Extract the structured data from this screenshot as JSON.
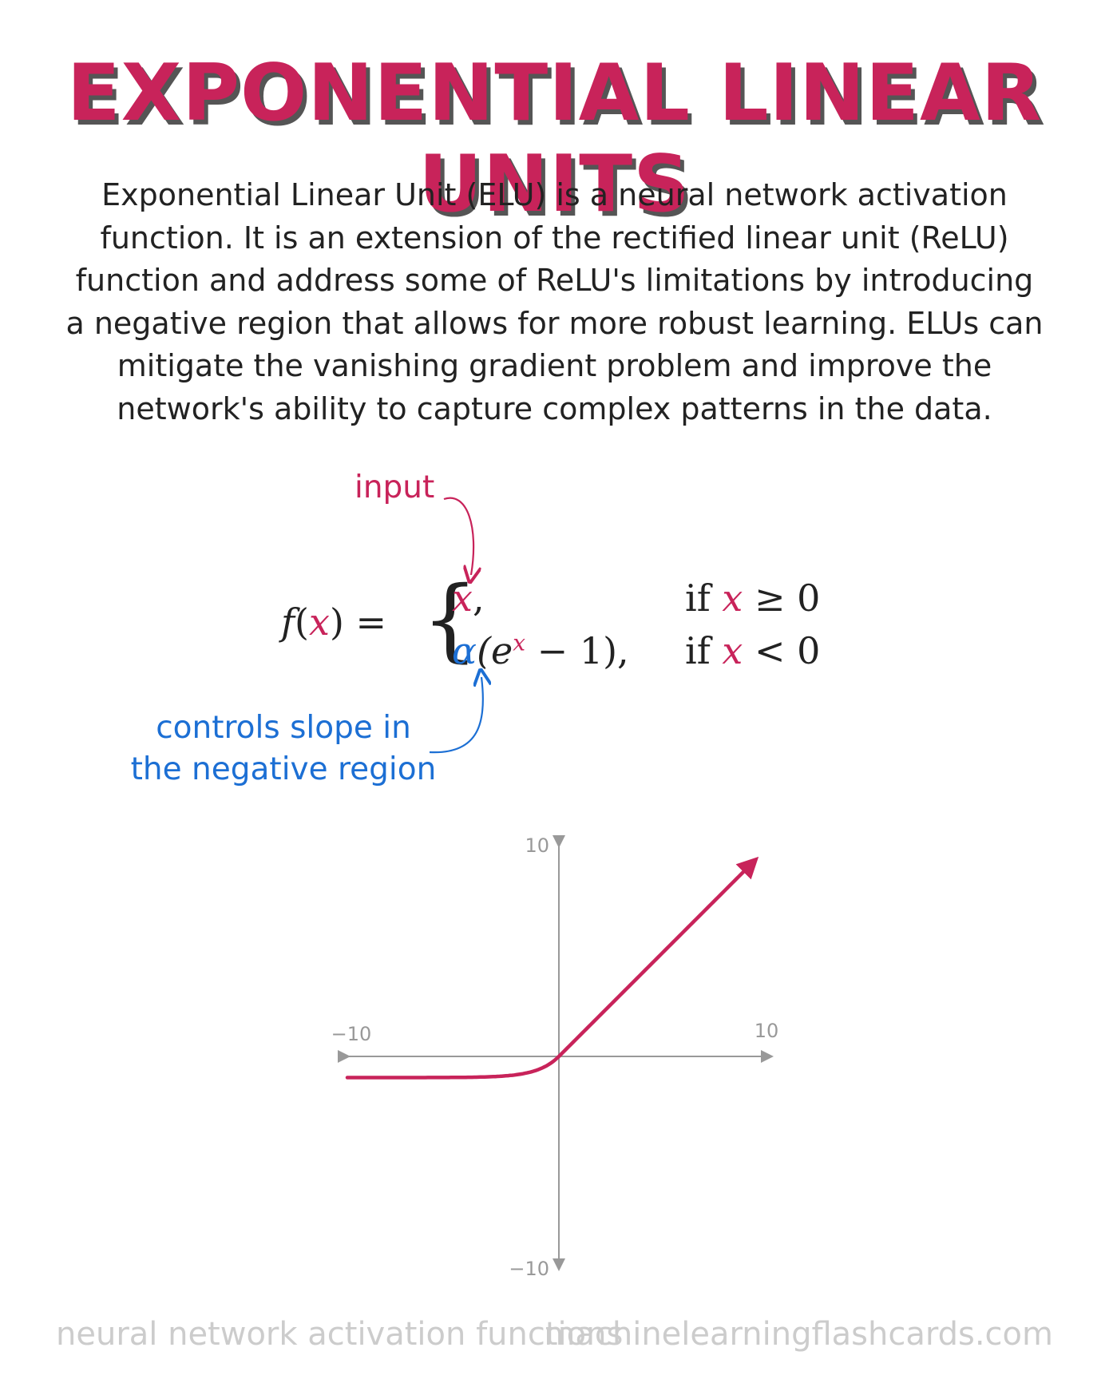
{
  "title": "EXPONENTIAL LINEAR UNITS",
  "description": "Exponential Linear Unit (ELU) is a neural network activation function. It is an extension of the rectified linear unit (ReLU) function and address some of ReLU's limitations by introducing a negative region that allows for more robust learning. ELUs can mitigate the vanishing gradient problem and improve the network's ability to capture complex patterns in the data.",
  "annotations": {
    "input": "input",
    "alpha": "controls slope in the negative region"
  },
  "formula": {
    "lhs_f": "f",
    "lhs_open": "(",
    "lhs_x": "x",
    "lhs_close": ") =",
    "brace": "{",
    "case1_expr_x": "x",
    "case1_expr_comma": ",",
    "case1_cond_if": "if",
    "case1_cond_x": "x",
    "case1_cond_rest": "≥ 0",
    "case2_alpha": "α",
    "case2_open": "(e",
    "case2_sup": "x",
    "case2_rest": "− 1),",
    "case2_cond_if": "if",
    "case2_cond_x": "x",
    "case2_cond_rest": "< 0"
  },
  "chart_data": {
    "type": "line",
    "function": "ELU",
    "alpha": 1,
    "xlim": [
      -10,
      10
    ],
    "ylim": [
      -10,
      10
    ],
    "tick_labels": {
      "x_min": "−10",
      "x_max": "10",
      "y_max": "10",
      "y_min": "−10"
    },
    "colors": {
      "curve": "#c8235a",
      "axes": "#999999"
    }
  },
  "colors": {
    "accent": "#c8235a",
    "annotation_blue": "#1c6fd4",
    "footer": "#cccccc"
  },
  "footer": {
    "left": "neural network activation functions",
    "right": "machinelearningflashcards.com"
  }
}
